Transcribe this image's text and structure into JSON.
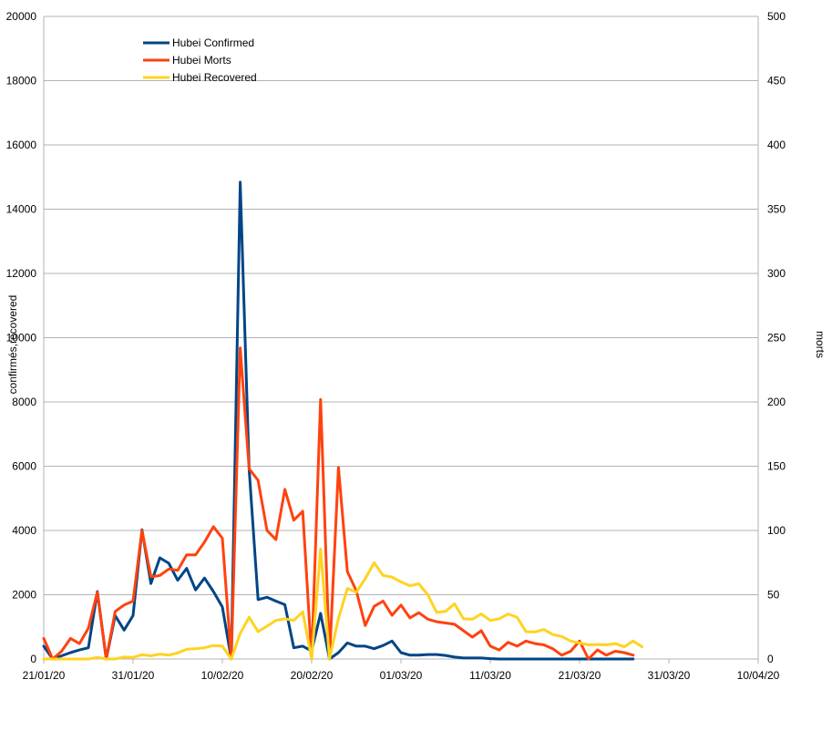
{
  "chart_data": {
    "type": "line",
    "title": "",
    "xlabel": "",
    "ylabel_left": "confirmés,recovered",
    "ylabel_right": "morts",
    "ylim_left": [
      0,
      20000
    ],
    "ylim_right": [
      0,
      500
    ],
    "yticks_left": [
      "0",
      "2000",
      "4000",
      "6000",
      "8000",
      "10000",
      "12000",
      "14000",
      "16000",
      "18000",
      "20000"
    ],
    "yticks_right": [
      "0",
      "50",
      "100",
      "150",
      "200",
      "250",
      "300",
      "350",
      "400",
      "450",
      "500"
    ],
    "xticks": [
      "21/01/20",
      "31/01/20",
      "10/02/20",
      "20/02/20",
      "01/03/20",
      "11/03/20",
      "21/03/20",
      "31/03/20",
      "10/04/20"
    ],
    "xlim": [
      "2020-01-21",
      "2020-04-10"
    ],
    "grid": "horizontal",
    "legend_position": "top-left",
    "series": [
      {
        "name": "Hubei Confirmed",
        "axis": "left",
        "color": "#004586",
        "x_start": "2020-01-21",
        "values": [
          400,
          0,
          100,
          200,
          280,
          350,
          2100,
          0,
          1350,
          900,
          1350,
          4020,
          2350,
          3150,
          2980,
          2450,
          2820,
          2150,
          2520,
          2100,
          1620,
          0,
          14840,
          5900,
          1850,
          1920,
          1800,
          1690,
          350,
          400,
          250,
          1420,
          0,
          200,
          500,
          400,
          400,
          320,
          420,
          560,
          200,
          120,
          120,
          140,
          140,
          110,
          60,
          30,
          30,
          30,
          10,
          0,
          0,
          0,
          0,
          0,
          0,
          0,
          0,
          0,
          0,
          0,
          0,
          0,
          0,
          0,
          0
        ]
      },
      {
        "name": "Hubei Morts",
        "axis": "right",
        "color": "#ff420e",
        "x_start": "2020-01-21",
        "values": [
          16,
          0,
          6,
          16,
          12,
          24,
          52,
          0,
          37,
          42,
          45,
          100,
          64,
          65,
          70,
          69,
          81,
          81,
          91,
          103,
          94,
          0,
          242,
          148,
          139,
          100,
          93,
          132,
          108,
          115,
          0,
          202,
          0,
          149,
          68,
          53,
          26,
          41,
          45,
          34,
          42,
          32,
          36,
          31,
          29,
          28,
          27,
          22,
          17,
          22,
          10,
          7,
          13,
          10,
          14,
          12,
          11,
          8,
          3,
          6,
          14,
          0,
          7,
          3,
          6,
          5,
          3
        ]
      },
      {
        "name": "Hubei Recovered",
        "axis": "left",
        "color": "#ffd320",
        "x_start": "2020-01-21",
        "values": [
          0,
          0,
          0,
          0,
          0,
          0,
          50,
          0,
          0,
          60,
          50,
          130,
          100,
          150,
          120,
          190,
          300,
          320,
          350,
          420,
          400,
          0,
          800,
          1300,
          850,
          1020,
          1200,
          1250,
          1200,
          1470,
          0,
          3420,
          0,
          1260,
          2200,
          2080,
          2500,
          3000,
          2600,
          2550,
          2400,
          2280,
          2340,
          2000,
          1450,
          1480,
          1720,
          1250,
          1240,
          1400,
          1200,
          1250,
          1400,
          1300,
          850,
          840,
          920,
          760,
          700,
          560,
          500,
          440,
          450,
          440,
          480,
          380,
          560,
          380
        ]
      }
    ]
  }
}
